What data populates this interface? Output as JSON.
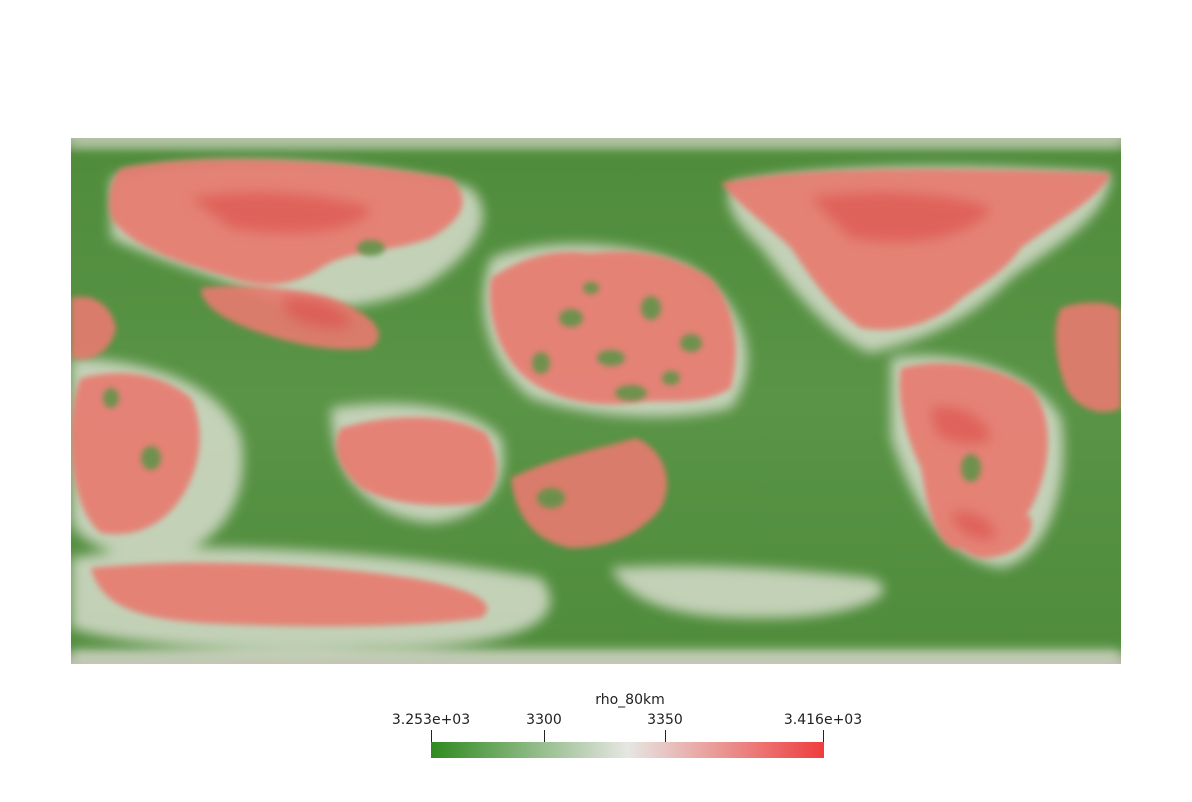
{
  "map": {
    "projection": "equirectangular",
    "colormap": [
      "#3b8a2a",
      "#e8e8e0",
      "#f04a4a"
    ],
    "ocean_color": "#4e8d3c"
  },
  "colorbar": {
    "title": "rho_80km",
    "min_label": "3.253e+03",
    "max_label": "3.416e+03",
    "ticks": [
      {
        "label": "3300",
        "value": 3300
      },
      {
        "label": "3350",
        "value": 3350
      }
    ],
    "min": 3253,
    "max": 3416,
    "color_low": "#2f8a1f",
    "color_mid": "#e6e6e2",
    "color_high": "#ee3d3d"
  }
}
